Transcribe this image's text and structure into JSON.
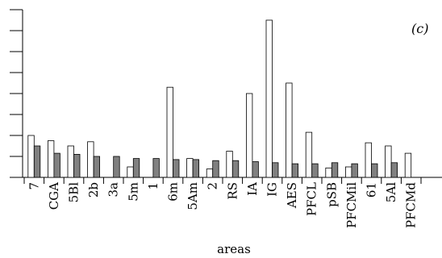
{
  "chart_data": {
    "type": "bar",
    "panel_label": "(c)",
    "xlabel": "areas",
    "ylabel": "",
    "ylim": [
      0,
      8
    ],
    "categories": [
      "7",
      "CGA",
      "5Bl",
      "2b",
      "3a",
      "5m",
      "1",
      "6m",
      "5Am",
      "2",
      "RS",
      "IA",
      "IG",
      "AES",
      "PFCL",
      "pSB",
      "PFCMil",
      "61",
      "5Al",
      "PFCMd"
    ],
    "series": [
      {
        "values": [
          2.0,
          1.75,
          1.5,
          1.7,
          0,
          0.5,
          0,
          4.3,
          0.9,
          0.4,
          1.25,
          4.0,
          7.5,
          4.5,
          2.15,
          0.45,
          0.5,
          1.65,
          1.5,
          1.15
        ],
        "color": "#ffffff"
      },
      {
        "values": [
          1.5,
          1.15,
          1.1,
          1.0,
          1.0,
          0.9,
          0.9,
          0.85,
          0.85,
          0.8,
          0.8,
          0.75,
          0.7,
          0.65,
          0.65,
          0.7,
          0.65,
          0.65,
          0.7,
          0
        ],
        "color": "#808080"
      }
    ],
    "grid": false,
    "legend": "none"
  }
}
